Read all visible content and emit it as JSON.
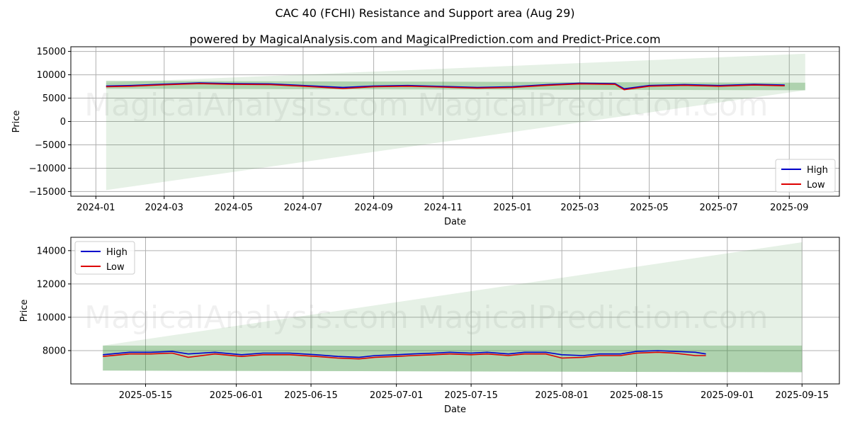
{
  "figure": {
    "title": "CAC 40 (FCHI) Resistance and Support area (Aug 29)",
    "subtitle": "powered by MagicalAnalysis.com and MagicalPrediction.com and Predict-Price.com",
    "watermarks": [
      "MagicalAnalysis.com",
      "MagicalPrediction.com"
    ]
  },
  "chart_data": [
    {
      "type": "line",
      "xlabel": "Date",
      "ylabel": "Price",
      "xlim": [
        "2023-12-10",
        "2025-10-15"
      ],
      "ylim": [
        -16000,
        16000
      ],
      "x_ticks": [
        "2024-01",
        "2024-03",
        "2024-05",
        "2024-07",
        "2024-09",
        "2024-11",
        "2025-01",
        "2025-03",
        "2025-05",
        "2025-07",
        "2025-09"
      ],
      "x_tick_dates": [
        "2024-01-01",
        "2024-03-01",
        "2024-05-01",
        "2024-07-01",
        "2024-09-01",
        "2024-11-01",
        "2025-01-01",
        "2025-03-01",
        "2025-05-01",
        "2025-07-01",
        "2025-09-01"
      ],
      "y_ticks": [
        15000,
        10000,
        5000,
        0,
        -5000,
        -10000,
        -15000
      ],
      "y_tick_labels": [
        "15000",
        "10000",
        "5000",
        "0",
        "−5000",
        "−10000",
        "−15000"
      ],
      "grid": true,
      "legend": "lower-right",
      "series": [
        {
          "name": "High",
          "color": "#0000cc",
          "x": [
            "2024-01-10",
            "2024-02-01",
            "2024-03-01",
            "2024-04-01",
            "2024-05-01",
            "2024-06-01",
            "2024-07-01",
            "2024-08-05",
            "2024-09-01",
            "2024-10-01",
            "2024-11-01",
            "2024-12-01",
            "2025-01-01",
            "2025-02-01",
            "2025-03-01",
            "2025-04-01",
            "2025-04-09",
            "2025-05-01",
            "2025-06-01",
            "2025-07-01",
            "2025-08-01",
            "2025-08-28"
          ],
          "values": [
            7600,
            7700,
            8000,
            8250,
            8100,
            8050,
            7700,
            7300,
            7600,
            7700,
            7500,
            7300,
            7450,
            7900,
            8200,
            8100,
            7000,
            7700,
            7900,
            7700,
            7950,
            7800
          ]
        },
        {
          "name": "Low",
          "color": "#dd0000",
          "x": [
            "2024-01-10",
            "2024-02-01",
            "2024-03-01",
            "2024-04-01",
            "2024-05-01",
            "2024-06-01",
            "2024-07-01",
            "2024-08-05",
            "2024-09-01",
            "2024-10-01",
            "2024-11-01",
            "2024-12-01",
            "2025-01-01",
            "2025-02-01",
            "2025-03-01",
            "2025-04-01",
            "2025-04-09",
            "2025-05-01",
            "2025-06-01",
            "2025-07-01",
            "2025-08-01",
            "2025-08-28"
          ],
          "values": [
            7450,
            7550,
            7850,
            8100,
            7950,
            7900,
            7550,
            7050,
            7450,
            7550,
            7350,
            7150,
            7300,
            7750,
            8050,
            7950,
            6800,
            7550,
            7750,
            7550,
            7800,
            7650
          ]
        }
      ],
      "areas": [
        {
          "name": "support",
          "color": "#2e8b2e",
          "x": [
            "2024-01-10",
            "2025-09-15"
          ],
          "upper": [
            8700,
            8300
          ],
          "lower": [
            7000,
            6700
          ]
        },
        {
          "name": "projection",
          "color": "#2e8b2e",
          "x": [
            "2024-01-10",
            "2025-09-15"
          ],
          "upper": [
            8300,
            14500
          ],
          "lower": [
            -14700,
            6700
          ]
        }
      ]
    },
    {
      "type": "line",
      "xlabel": "Date",
      "ylabel": "Price",
      "xlim": [
        "2025-05-01",
        "2025-09-22"
      ],
      "ylim": [
        6000,
        14800
      ],
      "x_ticks": [
        "2025-05-15",
        "2025-06-01",
        "2025-06-15",
        "2025-07-01",
        "2025-07-15",
        "2025-08-01",
        "2025-08-15",
        "2025-09-01",
        "2025-09-15"
      ],
      "y_ticks": [
        14000,
        12000,
        10000,
        8000
      ],
      "grid": true,
      "legend": "upper-left",
      "series": [
        {
          "name": "High",
          "color": "#0000cc",
          "x": [
            "2025-05-07",
            "2025-05-12",
            "2025-05-16",
            "2025-05-20",
            "2025-05-23",
            "2025-05-28",
            "2025-06-02",
            "2025-06-06",
            "2025-06-11",
            "2025-06-16",
            "2025-06-20",
            "2025-06-24",
            "2025-06-27",
            "2025-07-01",
            "2025-07-04",
            "2025-07-08",
            "2025-07-11",
            "2025-07-15",
            "2025-07-18",
            "2025-07-22",
            "2025-07-25",
            "2025-07-29",
            "2025-08-01",
            "2025-08-05",
            "2025-08-08",
            "2025-08-12",
            "2025-08-15",
            "2025-08-19",
            "2025-08-22",
            "2025-08-26",
            "2025-08-28"
          ],
          "values": [
            7750,
            7900,
            7900,
            7950,
            7800,
            7900,
            7750,
            7850,
            7850,
            7750,
            7650,
            7600,
            7700,
            7750,
            7800,
            7850,
            7900,
            7850,
            7900,
            7800,
            7900,
            7900,
            7750,
            7700,
            7800,
            7800,
            7950,
            8000,
            7950,
            7900,
            7800
          ]
        },
        {
          "name": "Low",
          "color": "#dd0000",
          "x": [
            "2025-05-07",
            "2025-05-12",
            "2025-05-16",
            "2025-05-20",
            "2025-05-23",
            "2025-05-28",
            "2025-06-02",
            "2025-06-06",
            "2025-06-11",
            "2025-06-16",
            "2025-06-20",
            "2025-06-24",
            "2025-06-27",
            "2025-07-01",
            "2025-07-04",
            "2025-07-08",
            "2025-07-11",
            "2025-07-15",
            "2025-07-18",
            "2025-07-22",
            "2025-07-25",
            "2025-07-29",
            "2025-08-01",
            "2025-08-05",
            "2025-08-08",
            "2025-08-12",
            "2025-08-15",
            "2025-08-19",
            "2025-08-22",
            "2025-08-26",
            "2025-08-28"
          ],
          "values": [
            7650,
            7800,
            7800,
            7850,
            7600,
            7800,
            7650,
            7750,
            7750,
            7650,
            7550,
            7500,
            7600,
            7650,
            7700,
            7750,
            7800,
            7750,
            7800,
            7700,
            7800,
            7800,
            7550,
            7600,
            7700,
            7700,
            7850,
            7900,
            7850,
            7700,
            7700
          ]
        }
      ],
      "areas": [
        {
          "name": "support",
          "color": "#2e8b2e",
          "x": [
            "2025-05-07",
            "2025-09-15"
          ],
          "upper": [
            8300,
            8300
          ],
          "lower": [
            6800,
            6700
          ]
        },
        {
          "name": "projection",
          "color": "#2e8b2e",
          "x": [
            "2025-05-07",
            "2025-09-15"
          ],
          "upper": [
            8300,
            14500
          ],
          "lower": [
            6800,
            6700
          ]
        }
      ]
    }
  ]
}
